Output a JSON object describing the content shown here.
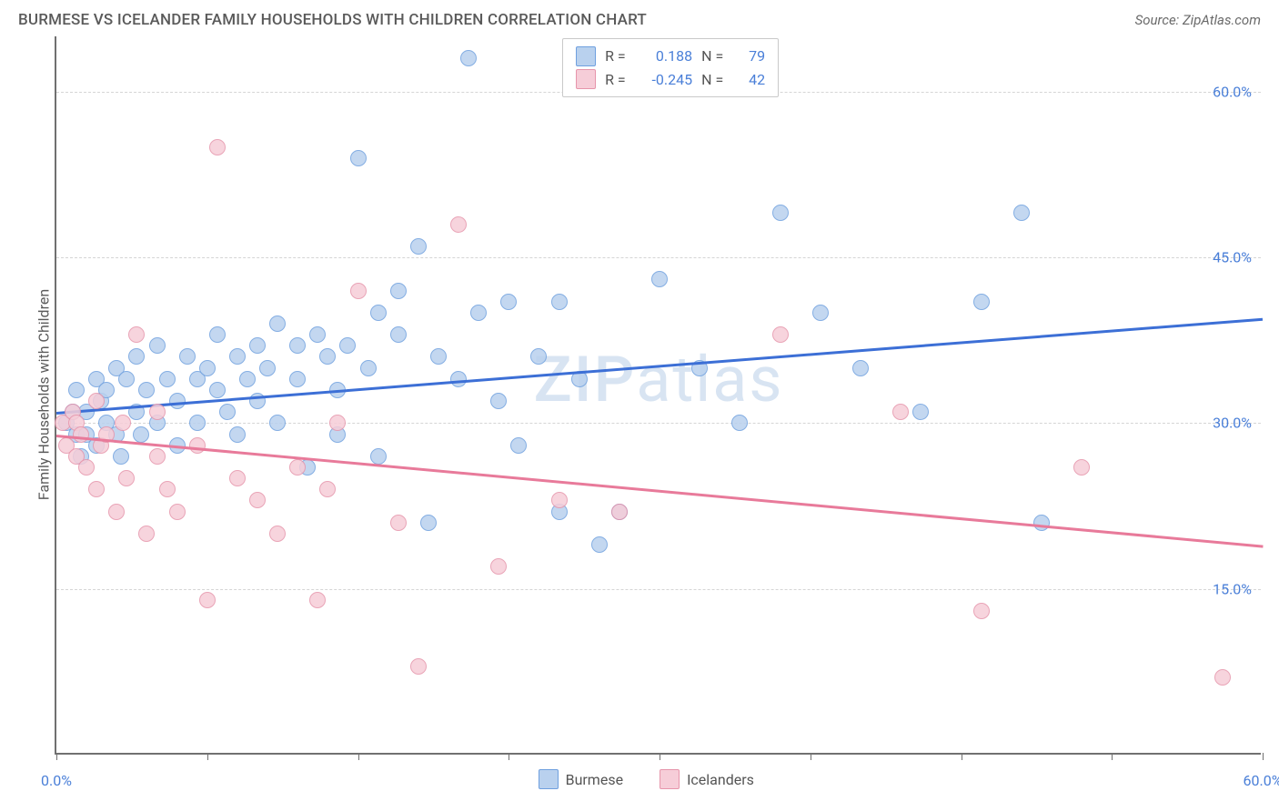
{
  "header": {
    "title": "BURMESE VS ICELANDER FAMILY HOUSEHOLDS WITH CHILDREN CORRELATION CHART",
    "source": "Source: ZipAtlas.com"
  },
  "chart": {
    "type": "scatter",
    "ylabel": "Family Households with Children",
    "xlim": [
      0,
      60
    ],
    "ylim": [
      0,
      65
    ],
    "xtick_positions": [
      0,
      7.5,
      15,
      22.5,
      30,
      37.5,
      45,
      52.5,
      60
    ],
    "xtick_labels": {
      "first": "0.0%",
      "last": "60.0%"
    },
    "ytick_positions": [
      15,
      30,
      45,
      60
    ],
    "ytick_labels": [
      "15.0%",
      "30.0%",
      "45.0%",
      "60.0%"
    ],
    "grid_color": "#d5d5d5",
    "axis_color": "#707070",
    "background_color": "#ffffff",
    "label_fontsize": 16,
    "tick_color": "#4a7fd8",
    "marker_size": 18,
    "marker_opacity": 0.85,
    "watermark_text_a": "ZIP",
    "watermark_text_b": "atlas",
    "watermark_color": "#d8e4f2",
    "legend_top": [
      {
        "swatch_fill": "#b9d1ee",
        "swatch_border": "#6fa0df",
        "r_label": "R =",
        "r_val": "0.188",
        "n_label": "N =",
        "n_val": "79"
      },
      {
        "swatch_fill": "#f6cdd8",
        "swatch_border": "#e695ab",
        "r_label": "R =",
        "r_val": "-0.245",
        "n_label": "N =",
        "n_val": "42"
      }
    ],
    "legend_bottom": [
      {
        "swatch_fill": "#b9d1ee",
        "swatch_border": "#6fa0df",
        "label": "Burmese"
      },
      {
        "swatch_fill": "#f6cdd8",
        "swatch_border": "#e695ab",
        "label": "Icelanders"
      }
    ],
    "series": [
      {
        "name": "Burmese",
        "fill": "#b9d1ee",
        "border": "#6fa0df",
        "trend": {
          "color": "#3c6fd6",
          "y_at_x0": 31,
          "y_at_xmax": 39.5,
          "width": 3
        },
        "points": [
          [
            0.5,
            30
          ],
          [
            0.8,
            31
          ],
          [
            1,
            29
          ],
          [
            1,
            33
          ],
          [
            1.2,
            27
          ],
          [
            1.5,
            31
          ],
          [
            1.5,
            29
          ],
          [
            2,
            34
          ],
          [
            2,
            28
          ],
          [
            2.2,
            32
          ],
          [
            2.5,
            30
          ],
          [
            2.5,
            33
          ],
          [
            3,
            35
          ],
          [
            3,
            29
          ],
          [
            3.2,
            27
          ],
          [
            3.5,
            34
          ],
          [
            4,
            31
          ],
          [
            4,
            36
          ],
          [
            4.2,
            29
          ],
          [
            4.5,
            33
          ],
          [
            5,
            37
          ],
          [
            5,
            30
          ],
          [
            5.5,
            34
          ],
          [
            6,
            32
          ],
          [
            6,
            28
          ],
          [
            6.5,
            36
          ],
          [
            7,
            34
          ],
          [
            7,
            30
          ],
          [
            7.5,
            35
          ],
          [
            8,
            33
          ],
          [
            8,
            38
          ],
          [
            8.5,
            31
          ],
          [
            9,
            36
          ],
          [
            9,
            29
          ],
          [
            9.5,
            34
          ],
          [
            10,
            37
          ],
          [
            10,
            32
          ],
          [
            10.5,
            35
          ],
          [
            11,
            39
          ],
          [
            11,
            30
          ],
          [
            12,
            34
          ],
          [
            12,
            37
          ],
          [
            12.5,
            26
          ],
          [
            13,
            38
          ],
          [
            13.5,
            36
          ],
          [
            14,
            33
          ],
          [
            14,
            29
          ],
          [
            14.5,
            37
          ],
          [
            15,
            54
          ],
          [
            15.5,
            35
          ],
          [
            16,
            40
          ],
          [
            16,
            27
          ],
          [
            17,
            38
          ],
          [
            17,
            42
          ],
          [
            18,
            46
          ],
          [
            18.5,
            21
          ],
          [
            19,
            36
          ],
          [
            20,
            34
          ],
          [
            20.5,
            63
          ],
          [
            21,
            40
          ],
          [
            22,
            32
          ],
          [
            22.5,
            41
          ],
          [
            23,
            28
          ],
          [
            24,
            36
          ],
          [
            25,
            41
          ],
          [
            25,
            22
          ],
          [
            26,
            34
          ],
          [
            27,
            19
          ],
          [
            28,
            22
          ],
          [
            30,
            43
          ],
          [
            32,
            35
          ],
          [
            34,
            30
          ],
          [
            36,
            49
          ],
          [
            38,
            40
          ],
          [
            40,
            35
          ],
          [
            43,
            31
          ],
          [
            46,
            41
          ],
          [
            48,
            49
          ],
          [
            49,
            21
          ]
        ]
      },
      {
        "name": "Icelanders",
        "fill": "#f6cdd8",
        "border": "#e695ab",
        "trend": {
          "color": "#e87a9a",
          "y_at_x0": 29,
          "y_at_xmax": 19,
          "width": 3
        },
        "points": [
          [
            0.3,
            30
          ],
          [
            0.5,
            28
          ],
          [
            0.8,
            31
          ],
          [
            1,
            27
          ],
          [
            1,
            30
          ],
          [
            1.2,
            29
          ],
          [
            1.5,
            26
          ],
          [
            2,
            32
          ],
          [
            2,
            24
          ],
          [
            2.2,
            28
          ],
          [
            2.5,
            29
          ],
          [
            3,
            22
          ],
          [
            3.3,
            30
          ],
          [
            3.5,
            25
          ],
          [
            4,
            38
          ],
          [
            4.5,
            20
          ],
          [
            5,
            27
          ],
          [
            5,
            31
          ],
          [
            5.5,
            24
          ],
          [
            6,
            22
          ],
          [
            7,
            28
          ],
          [
            7.5,
            14
          ],
          [
            8,
            55
          ],
          [
            9,
            25
          ],
          [
            10,
            23
          ],
          [
            11,
            20
          ],
          [
            12,
            26
          ],
          [
            13,
            14
          ],
          [
            13.5,
            24
          ],
          [
            14,
            30
          ],
          [
            15,
            42
          ],
          [
            17,
            21
          ],
          [
            18,
            8
          ],
          [
            20,
            48
          ],
          [
            22,
            17
          ],
          [
            25,
            23
          ],
          [
            28,
            22
          ],
          [
            36,
            38
          ],
          [
            42,
            31
          ],
          [
            46,
            13
          ],
          [
            51,
            26
          ],
          [
            58,
            7
          ]
        ]
      }
    ]
  }
}
